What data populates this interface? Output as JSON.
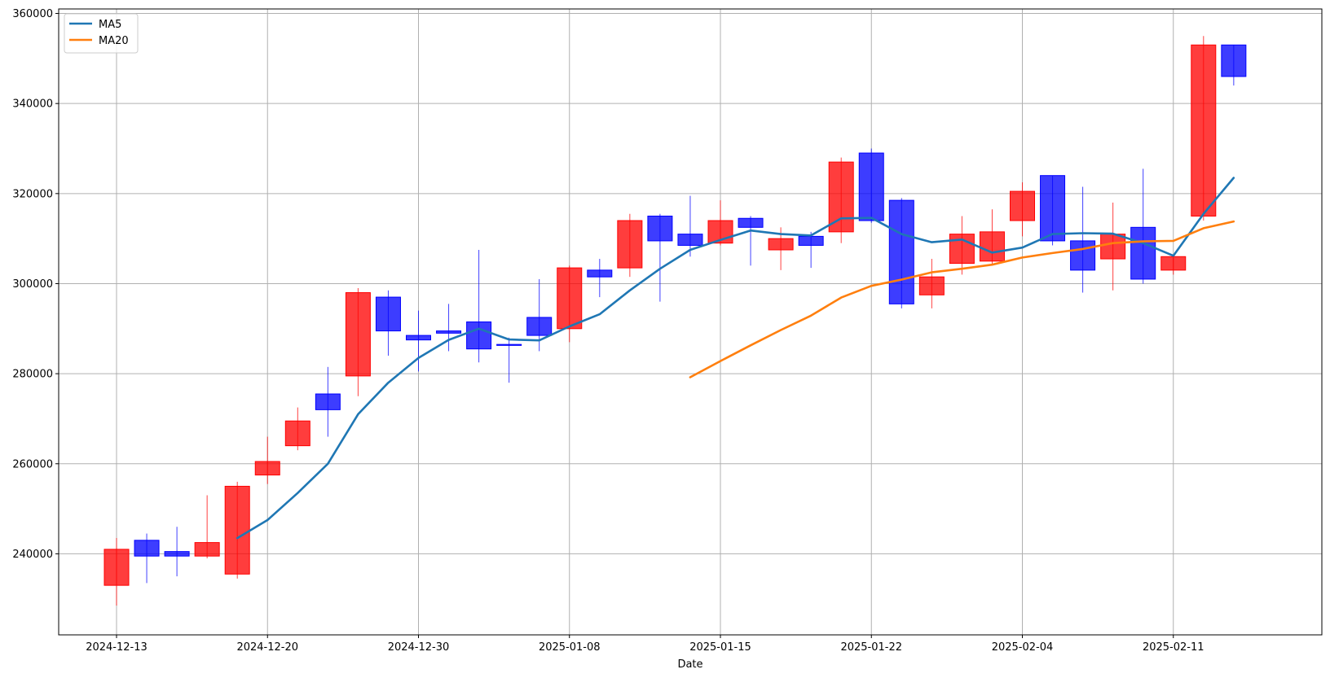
{
  "chart_data": {
    "type": "candlestick",
    "xlabel": "Date",
    "ylim": [
      222000,
      361000
    ],
    "y_ticks": [
      240000,
      260000,
      280000,
      300000,
      320000,
      340000,
      360000
    ],
    "x_ticks": [
      {
        "index": 0,
        "label": "2024-12-13"
      },
      {
        "index": 5,
        "label": "2024-12-20"
      },
      {
        "index": 10,
        "label": "2024-12-30"
      },
      {
        "index": 15,
        "label": "2025-01-08"
      },
      {
        "index": 20,
        "label": "2025-01-15"
      },
      {
        "index": 25,
        "label": "2025-01-22"
      },
      {
        "index": 30,
        "label": "2025-02-04"
      },
      {
        "index": 35,
        "label": "2025-02-11"
      }
    ],
    "grid": true,
    "legend_position": "top-left",
    "colors": {
      "up": "#ff0000",
      "down": "#0000ff",
      "ma5": "#1f77b4",
      "ma20": "#ff7f0e",
      "grid": "#b0b0b0"
    },
    "candles": [
      {
        "open": 233000,
        "close": 241000,
        "high": 243500,
        "low": 228500
      },
      {
        "open": 243000,
        "close": 239500,
        "high": 244500,
        "low": 233500
      },
      {
        "open": 240500,
        "close": 239500,
        "high": 246000,
        "low": 235000
      },
      {
        "open": 239500,
        "close": 242500,
        "high": 253000,
        "low": 239000
      },
      {
        "open": 235500,
        "close": 255000,
        "high": 256000,
        "low": 234500
      },
      {
        "open": 257500,
        "close": 260500,
        "high": 266000,
        "low": 255500
      },
      {
        "open": 264000,
        "close": 269500,
        "high": 272500,
        "low": 263000
      },
      {
        "open": 275500,
        "close": 272000,
        "high": 281500,
        "low": 266000
      },
      {
        "open": 279500,
        "close": 298000,
        "high": 299000,
        "low": 275000
      },
      {
        "open": 297000,
        "close": 289500,
        "high": 298500,
        "low": 284000
      },
      {
        "open": 288500,
        "close": 287500,
        "high": 294000,
        "low": 280500
      },
      {
        "open": 289500,
        "close": 289000,
        "high": 295500,
        "low": 285000
      },
      {
        "open": 291500,
        "close": 285500,
        "high": 307500,
        "low": 282500
      },
      {
        "open": 286500,
        "close": 286300,
        "high": 288000,
        "low": 278000
      },
      {
        "open": 292500,
        "close": 288500,
        "high": 301000,
        "low": 285000
      },
      {
        "open": 290000,
        "close": 303500,
        "high": 304000,
        "low": 287000
      },
      {
        "open": 303000,
        "close": 301500,
        "high": 305500,
        "low": 297000
      },
      {
        "open": 303500,
        "close": 314000,
        "high": 315500,
        "low": 301500
      },
      {
        "open": 315000,
        "close": 309500,
        "high": 315500,
        "low": 296000
      },
      {
        "open": 311000,
        "close": 308500,
        "high": 319500,
        "low": 306000
      },
      {
        "open": 309000,
        "close": 314000,
        "high": 318500,
        "low": 308500
      },
      {
        "open": 314500,
        "close": 312500,
        "high": 315000,
        "low": 304000
      },
      {
        "open": 307500,
        "close": 310000,
        "high": 312500,
        "low": 303000
      },
      {
        "open": 310500,
        "close": 308500,
        "high": 311500,
        "low": 303500
      },
      {
        "open": 311500,
        "close": 327000,
        "high": 328000,
        "low": 309000
      },
      {
        "open": 329000,
        "close": 314000,
        "high": 330000,
        "low": 313500
      },
      {
        "open": 318500,
        "close": 295500,
        "high": 319000,
        "low": 294500
      },
      {
        "open": 297500,
        "close": 301500,
        "high": 305500,
        "low": 294500
      },
      {
        "open": 304500,
        "close": 311000,
        "high": 315000,
        "low": 302000
      },
      {
        "open": 305000,
        "close": 311500,
        "high": 316500,
        "low": 304000
      },
      {
        "open": 314000,
        "close": 320500,
        "high": 322500,
        "low": 310500
      },
      {
        "open": 324000,
        "close": 309500,
        "high": 324000,
        "low": 308500
      },
      {
        "open": 309500,
        "close": 303000,
        "high": 321500,
        "low": 298000
      },
      {
        "open": 305500,
        "close": 311000,
        "high": 318000,
        "low": 298500
      },
      {
        "open": 312500,
        "close": 301000,
        "high": 325500,
        "low": 300000
      },
      {
        "open": 303000,
        "close": 306000,
        "high": 306000,
        "low": 302000
      },
      {
        "open": 315000,
        "close": 353000,
        "high": 355000,
        "low": 314000
      },
      {
        "open": 353000,
        "close": 346000,
        "high": 353000,
        "low": 344000
      }
    ],
    "series": [
      {
        "name": "MA5",
        "start_index": 4,
        "values": [
          243500,
          247500,
          253500,
          260000,
          271000,
          278000,
          283500,
          287500,
          290000,
          287600,
          287400,
          290500,
          293200,
          298500,
          303300,
          307500,
          309700,
          311800,
          311000,
          310700,
          314500,
          314600,
          311000,
          309200,
          309800,
          306900,
          308000,
          311000,
          311200,
          311100,
          309000,
          306200,
          315500,
          323500
        ]
      },
      {
        "name": "MA20",
        "start_index": 19,
        "values": [
          279200,
          282800,
          286300,
          289700,
          292900,
          296900,
          299500,
          300900,
          302500,
          303300,
          304200,
          305800,
          306800,
          307700,
          309000,
          309400,
          309500,
          312300,
          313800
        ]
      }
    ]
  }
}
